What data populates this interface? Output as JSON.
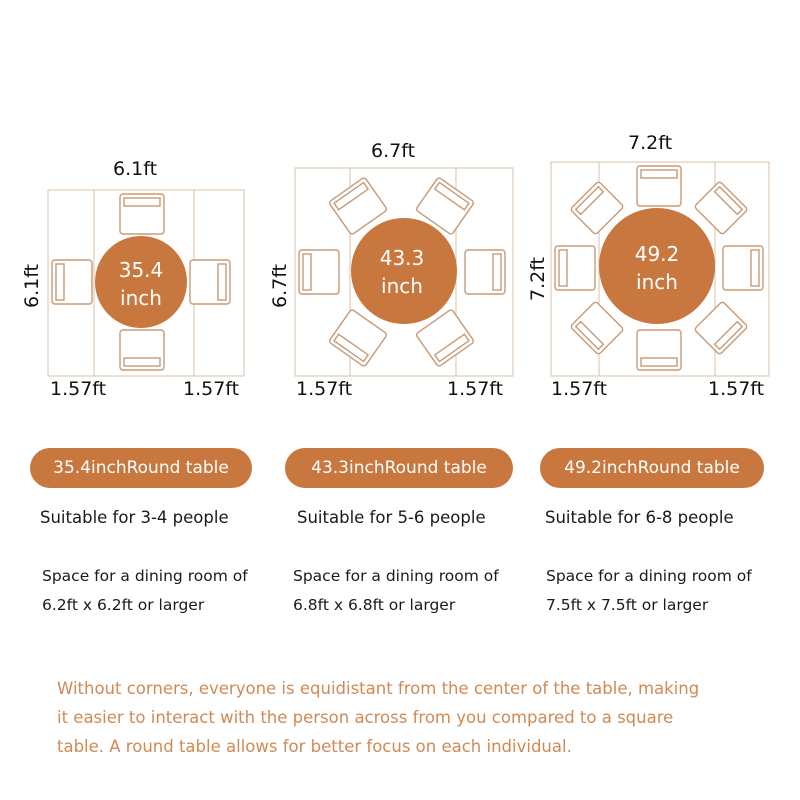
{
  "colors": {
    "accent": "#c8773f",
    "footer_text": "#d08a55",
    "outline": "#d9c2aa"
  },
  "tables": [
    {
      "top_dim": "6.1ft",
      "side_dim": "6.1ft",
      "table_label": "35.4\ninch",
      "table_label_line1": "35.4",
      "table_label_line2": "inch",
      "clearance_left": "1.57ft",
      "clearance_right": "1.57ft",
      "chairs": 4,
      "pill": "35.4inchRound table",
      "suitable": "Suitable for 3-4 people",
      "space_line1": "Space for a dining room of",
      "space_line2": "6.2ft x 6.2ft or larger"
    },
    {
      "top_dim": "6.7ft",
      "side_dim": "6.7ft",
      "table_label_line1": "43.3",
      "table_label_line2": "inch",
      "clearance_left": "1.57ft",
      "clearance_right": "1.57ft",
      "chairs": 6,
      "pill": "43.3inchRound table",
      "suitable": "Suitable for 5-6 people",
      "space_line1": "Space for a dining room of",
      "space_line2": "6.8ft x 6.8ft or larger"
    },
    {
      "top_dim": "7.2ft",
      "side_dim": "7.2ft",
      "table_label_line1": "49.2",
      "table_label_line2": "inch",
      "clearance_left": "1.57ft",
      "clearance_right": "1.57ft",
      "chairs": 8,
      "pill": "49.2inchRound table",
      "suitable": "Suitable for 6-8 people",
      "space_line1": "Space for a dining room of",
      "space_line2": "7.5ft x 7.5ft or larger"
    }
  ],
  "footer": {
    "line1": "Without corners, everyone is equidistant from the center of the table, making",
    "line2": "it easier to interact with the person across from you compared to a square",
    "line3": "table. A round table allows for better focus on each individual."
  }
}
